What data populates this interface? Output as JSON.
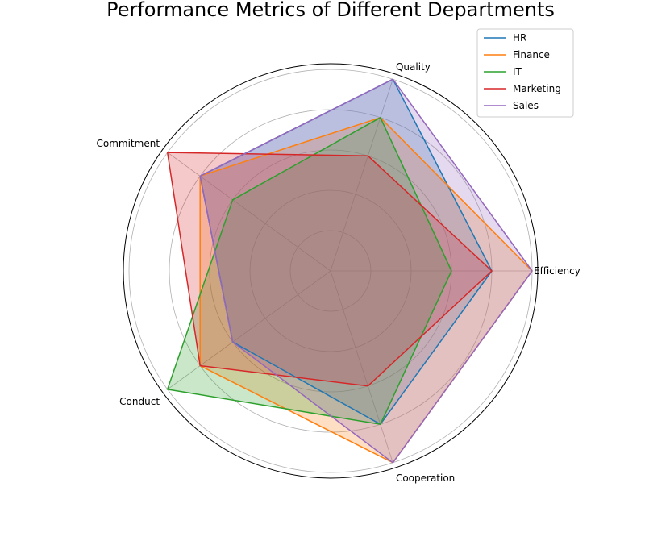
{
  "chart_data": {
    "type": "radar",
    "title": "Performance Metrics of Different Departments",
    "axes": [
      "Efficiency",
      "Quality",
      "Commitment",
      "Conduct",
      "Cooperation"
    ],
    "rmax": 5,
    "rings": [
      1,
      2,
      3,
      4,
      5
    ],
    "legend_position": "upper-right",
    "grid": true,
    "series": [
      {
        "name": "HR",
        "color": "#1f77b4",
        "values": [
          4,
          5,
          4,
          3,
          4
        ]
      },
      {
        "name": "Finance",
        "color": "#ff7f0e",
        "values": [
          5,
          4,
          4,
          4,
          5
        ]
      },
      {
        "name": "IT",
        "color": "#2ca02c",
        "values": [
          3,
          4,
          3,
          5,
          4
        ]
      },
      {
        "name": "Marketing",
        "color": "#d62728",
        "values": [
          4,
          3,
          5,
          4,
          3
        ]
      },
      {
        "name": "Sales",
        "color": "#9467bd",
        "values": [
          5,
          5,
          4,
          3,
          5
        ]
      }
    ]
  }
}
